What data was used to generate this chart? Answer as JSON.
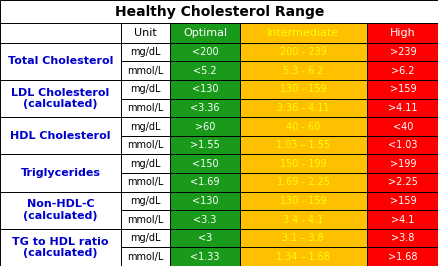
{
  "title": "Healthy Cholesterol Range",
  "col_headers": [
    "Unit",
    "Optimal",
    "Intermediate",
    "High"
  ],
  "col_header_bg": [
    "#ffffff",
    "#1a9a1a",
    "#ffc000",
    "#ff0000"
  ],
  "col_header_tc": [
    "#000000",
    "#ffffff",
    "#ffff00",
    "#ffffff"
  ],
  "rows": [
    {
      "label": "Total Cholesterol",
      "label_lines": [
        "Total Cholesterol"
      ],
      "sub_rows": [
        [
          "mg/dL",
          "<200",
          "200 - 239",
          ">239"
        ],
        [
          "mmol/L",
          "<5.2",
          "5.3 - 6.2",
          ">6.2"
        ]
      ]
    },
    {
      "label": "LDL Cholesterol\n(calculated)",
      "label_lines": [
        "LDL Cholesterol",
        "(calculated)"
      ],
      "sub_rows": [
        [
          "mg/dL",
          "<130",
          "130 - 159",
          ">159"
        ],
        [
          "mmol/L",
          "<3.36",
          "3.36 - 4.11",
          ">4.11"
        ]
      ]
    },
    {
      "label": "HDL Cholesterol",
      "label_lines": [
        "HDL Cholesterol"
      ],
      "sub_rows": [
        [
          "mg/dL",
          ">60",
          "40 - 60",
          "<40"
        ],
        [
          "mmol/L",
          ">1.55",
          "1.03 – 1.55",
          "<1.03"
        ]
      ]
    },
    {
      "label": "Triglycerides",
      "label_lines": [
        "Triglycerides"
      ],
      "sub_rows": [
        [
          "mg/dL",
          "<150",
          "150 - 199",
          ">199"
        ],
        [
          "mmol/L",
          "<1.69",
          "1.69 - 2.25",
          ">2.25"
        ]
      ]
    },
    {
      "label": "Non-HDL-C\n(calculated)",
      "label_lines": [
        "Non-HDL-C",
        "(calculated)"
      ],
      "sub_rows": [
        [
          "mg/dL",
          "<130",
          "130 - 159",
          ">159"
        ],
        [
          "mmol/L",
          "<3.3",
          "3.4 - 4.1",
          ">4.1"
        ]
      ]
    },
    {
      "label": "TG to HDL ratio\n(calculated)",
      "label_lines": [
        "TG to HDL ratio",
        "(calculated)"
      ],
      "sub_rows": [
        [
          "mg/dL",
          "<3",
          "3.1 – 3.8",
          ">3.8"
        ],
        [
          "mmol/L",
          "<1.33",
          "1.34 – 1.68",
          ">1.68"
        ]
      ]
    }
  ],
  "col_colors": [
    "#1a9a1a",
    "#ffc000",
    "#ff0000"
  ],
  "col_text_colors": [
    "#ffffff",
    "#ffff00",
    "#ffffff"
  ],
  "label_color": "#0000cc",
  "unit_color": "#000000",
  "bg_color": "#ffffff",
  "border_color": "#000000",
  "title_fontsize": 10,
  "header_fontsize": 8,
  "cell_fontsize": 7,
  "label_fontsize": 8
}
